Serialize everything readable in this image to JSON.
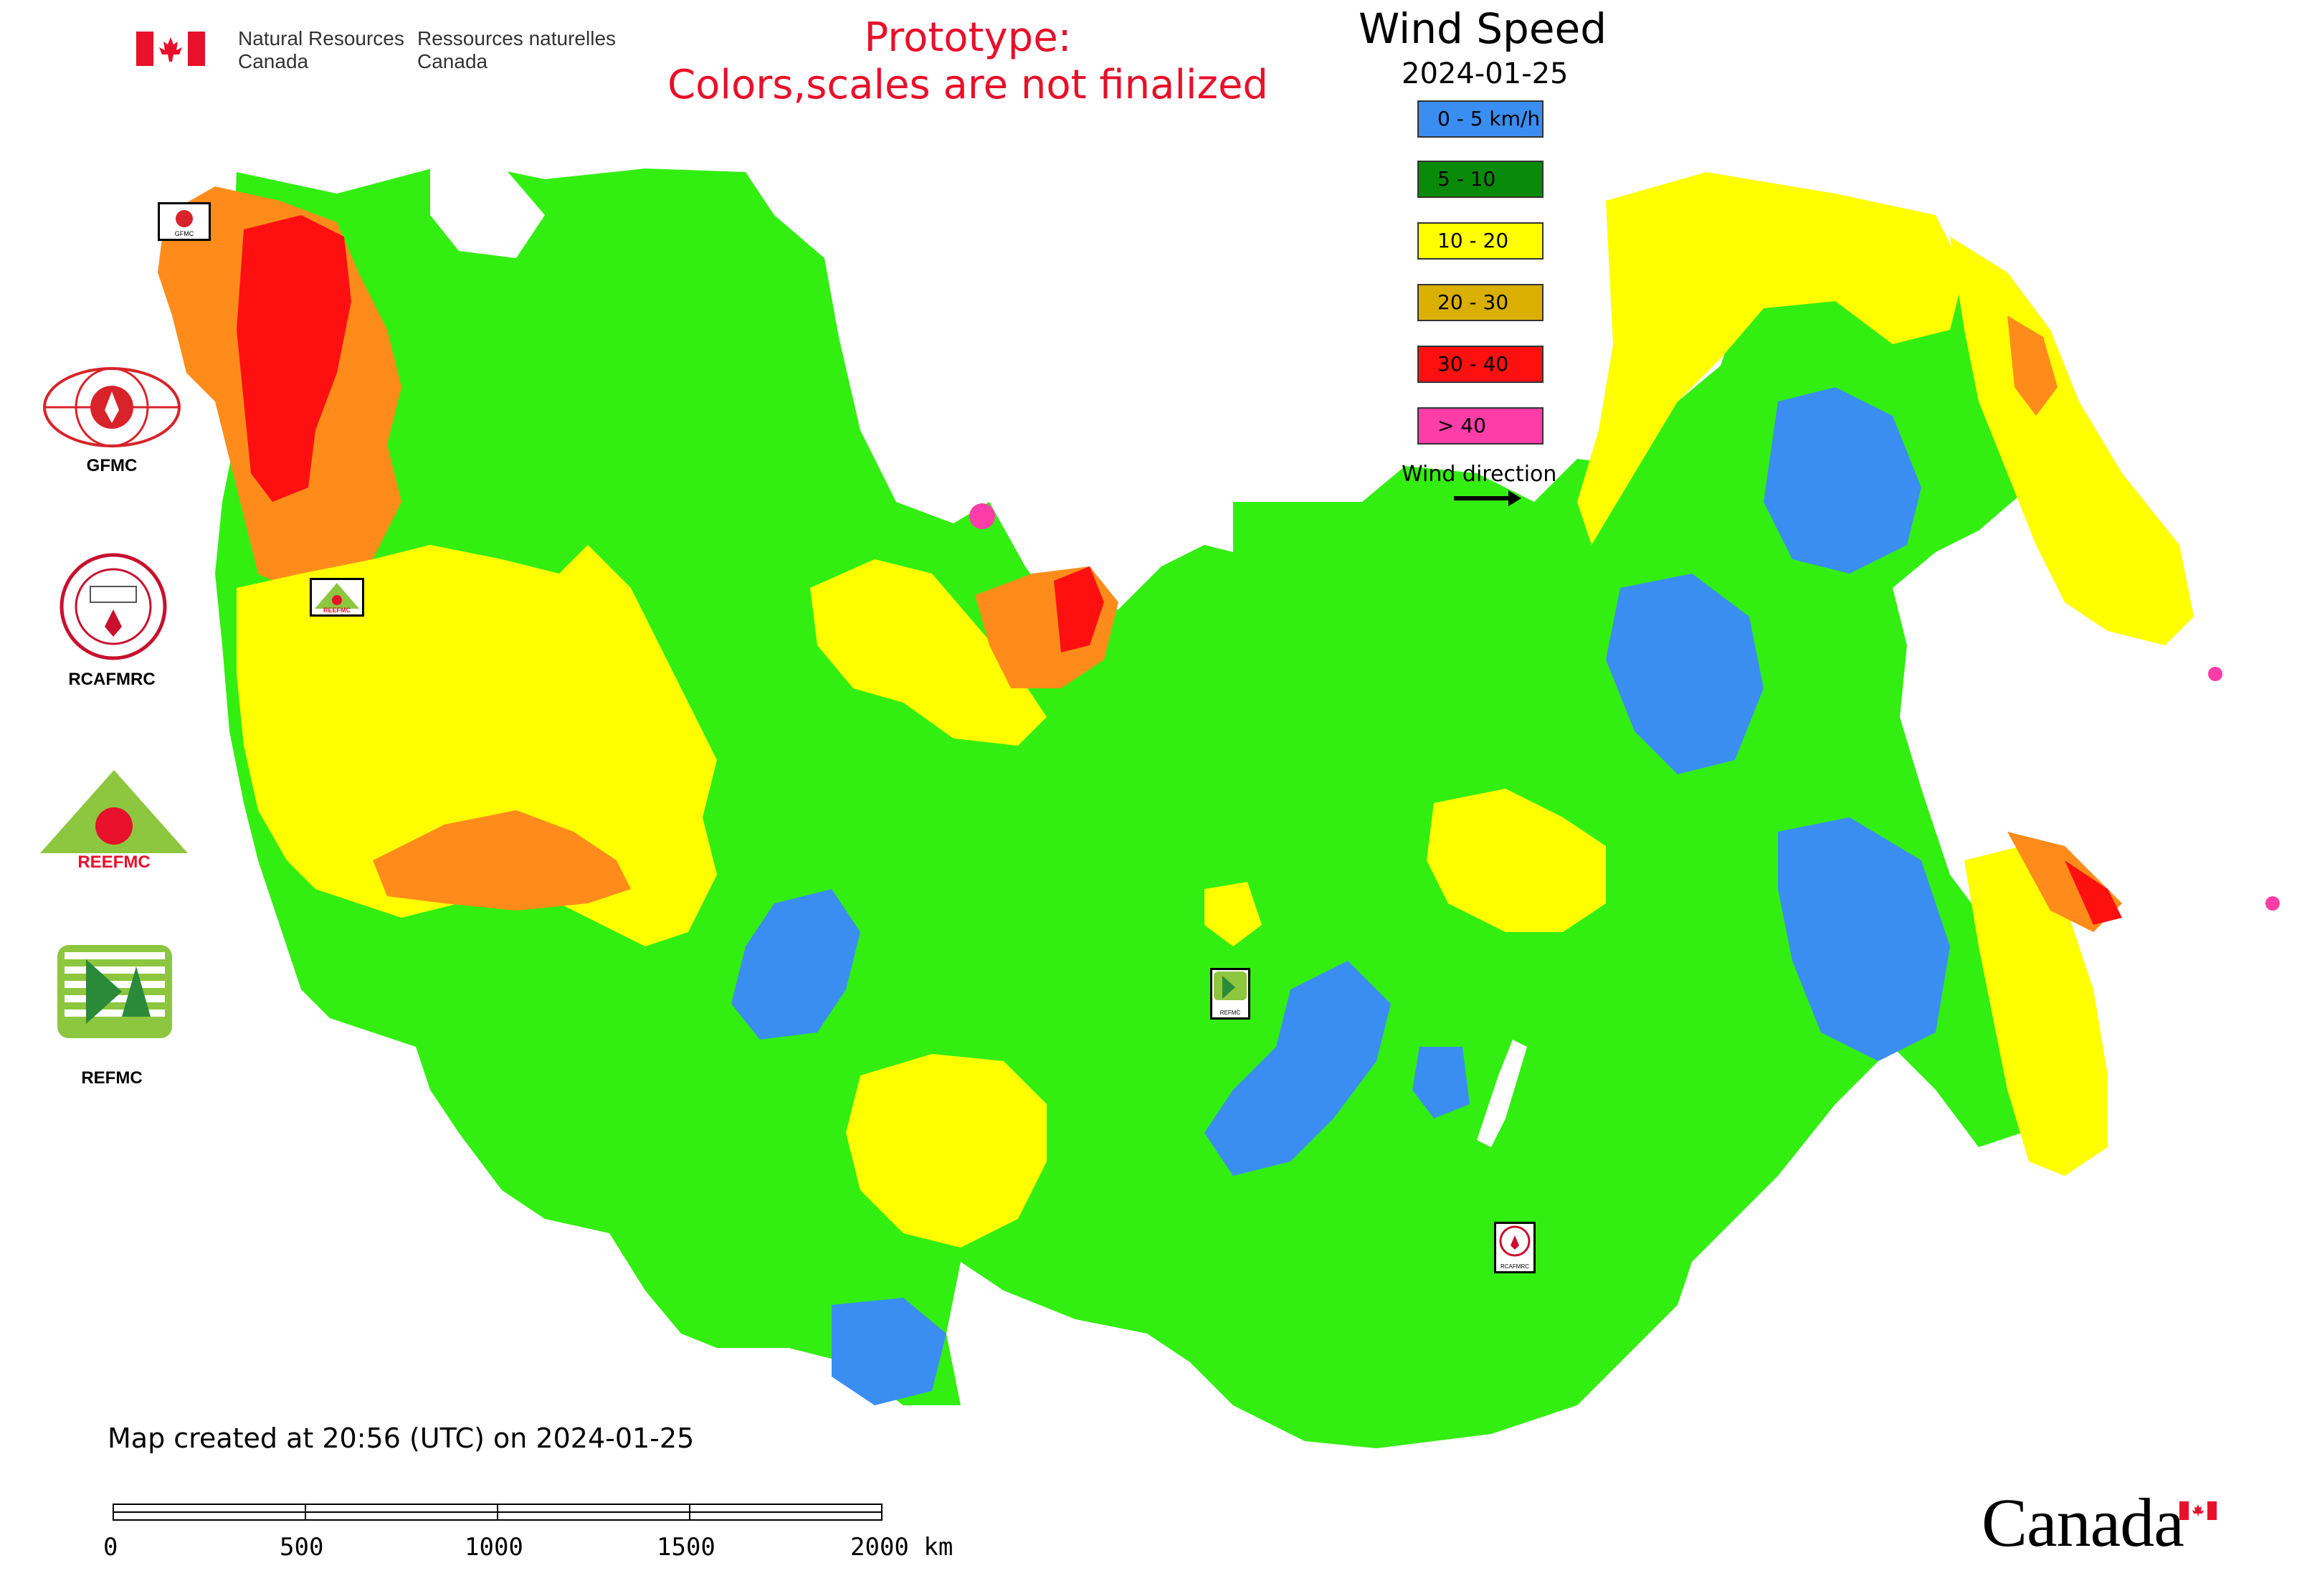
{
  "header": {
    "dept_en_line1": "Natural Resources",
    "dept_en_line2": "Canada",
    "dept_fr_line1": "Ressources naturelles",
    "dept_fr_line2": "Canada",
    "prototype_line1": "Prototype:",
    "prototype_line2": "Colors,scales are not finalized"
  },
  "legend": {
    "title": "Wind Speed",
    "date": "2024-01-25",
    "items": [
      {
        "label": "0 - 5 km/h",
        "color": "#3a8ef2"
      },
      {
        "label": "5 - 10",
        "color": "#0a8a0a"
      },
      {
        "label": "10 - 20",
        "color": "#ffff00"
      },
      {
        "label": "20 - 30",
        "color": "#d9b000"
      },
      {
        "label": "30 - 40",
        "color": "#ff1010"
      },
      {
        "label": "> 40",
        "color": "#ff3da8"
      }
    ],
    "wind_direction_label": "Wind direction"
  },
  "organizations": [
    {
      "label": "GFMC",
      "icon": "gfmc-logo-icon"
    },
    {
      "label": "RCAFMRC",
      "icon": "rcafmrc-logo-icon"
    },
    {
      "label": "REEFMC",
      "icon": "reefmc-logo-icon"
    },
    {
      "label": "REFMC",
      "icon": "refmc-logo-icon"
    }
  ],
  "map_markers": [
    {
      "label": "GFMC"
    },
    {
      "label": "REEFMC"
    },
    {
      "label": "REFMC"
    },
    {
      "label": "RCAFMRC"
    }
  ],
  "footer": {
    "created_text": "Map created at 20:56 (UTC) on 2024-01-25",
    "scale_labels": [
      "0",
      "500",
      "1000",
      "1500",
      "2000 km"
    ],
    "wordmark": "Canada"
  },
  "colors": {
    "zone_calm": "#3a8ef2",
    "zone_low": "#33ee11",
    "zone_moderate": "#ffff00",
    "zone_high": "#ff8c1a",
    "zone_very_high": "#ff1010",
    "zone_extreme": "#ff3da8",
    "water": "#ffffff",
    "flag_red": "#e8102a"
  }
}
